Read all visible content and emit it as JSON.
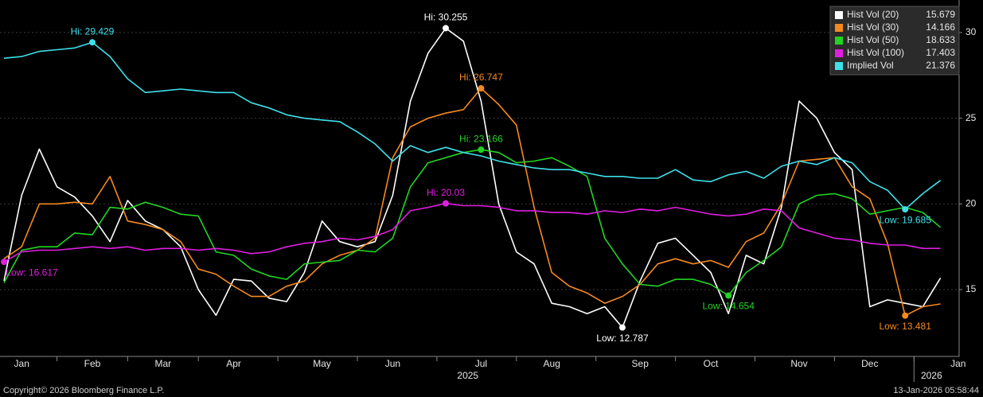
{
  "chart_data": {
    "type": "line",
    "categories": [
      null,
      "Jan",
      null,
      null,
      null,
      "Feb",
      null,
      null,
      null,
      "Mar",
      null,
      null,
      null,
      "Apr",
      null,
      null,
      null,
      null,
      "May",
      null,
      null,
      null,
      "Jun",
      null,
      null,
      null,
      null,
      "Jul",
      null,
      null,
      null,
      "Aug",
      null,
      null,
      null,
      null,
      "Sep",
      null,
      null,
      null,
      "Oct",
      null,
      null,
      null,
      null,
      "Nov",
      null,
      null,
      null,
      "Dec",
      null,
      null,
      null,
      null,
      "Jan"
    ],
    "years": [
      "2025",
      "2026"
    ],
    "ylim": [
      11.1,
      31.9
    ],
    "yticks": [
      15,
      20,
      25,
      30
    ],
    "grid": true,
    "legend": "top-right",
    "series": [
      {
        "name": "Hist Vol (20)",
        "color": "#ffffff",
        "high_label": "Hi: 30.255",
        "low_label": "Low: 12.787",
        "values": [
          15.5,
          20.5,
          23.2,
          21.0,
          20.4,
          19.3,
          17.8,
          20.2,
          19.0,
          18.5,
          17.5,
          15.0,
          13.5,
          15.6,
          15.5,
          14.5,
          14.3,
          16.0,
          19.0,
          17.8,
          17.5,
          17.8,
          20.5,
          26.0,
          28.8,
          30.255,
          29.5,
          26.0,
          20.0,
          17.2,
          16.5,
          14.2,
          14.0,
          13.6,
          14.0,
          12.787,
          15.5,
          17.7,
          18.0,
          17.0,
          16.0,
          13.6,
          17.0,
          16.5,
          19.8,
          26.0,
          25.0,
          23.0,
          22.0,
          14.0,
          14.4,
          14.2,
          14.0,
          15.679,
          null
        ]
      },
      {
        "name": "Hist Vol (30)",
        "color": "#f5891f",
        "high_label": "Hi: 26.747",
        "low_label": "Low: 13.481",
        "values": [
          16.8,
          17.5,
          20.0,
          20.0,
          20.1,
          20.0,
          21.6,
          19.0,
          18.8,
          18.5,
          17.8,
          16.2,
          15.9,
          15.2,
          14.6,
          14.6,
          15.2,
          15.5,
          16.5,
          17.0,
          17.3,
          18.0,
          22.7,
          24.5,
          25.0,
          25.3,
          25.5,
          26.747,
          25.8,
          24.6,
          19.8,
          16.0,
          15.2,
          14.8,
          14.2,
          14.6,
          15.3,
          16.5,
          16.8,
          16.5,
          16.7,
          16.3,
          17.8,
          18.3,
          20.0,
          22.5,
          22.6,
          22.7,
          21.0,
          20.3,
          17.7,
          13.481,
          14.0,
          14.166,
          null
        ]
      },
      {
        "name": "Hist Vol (50)",
        "color": "#22d422",
        "high_label": "Hi: 23.166",
        "low_label": "Low: 14.654",
        "values": [
          15.4,
          17.3,
          17.5,
          17.5,
          18.3,
          18.2,
          19.8,
          19.7,
          20.1,
          19.8,
          19.4,
          19.3,
          17.2,
          17.0,
          16.2,
          15.8,
          15.6,
          16.5,
          16.6,
          16.7,
          17.3,
          17.2,
          18.0,
          21.0,
          22.4,
          22.7,
          23.0,
          23.166,
          23.0,
          22.4,
          22.5,
          22.7,
          22.2,
          21.6,
          18.0,
          16.5,
          15.3,
          15.2,
          15.6,
          15.6,
          15.3,
          14.654,
          16.0,
          16.7,
          17.5,
          20.0,
          20.5,
          20.6,
          20.3,
          19.4,
          19.6,
          19.8,
          19.5,
          18.633,
          null
        ]
      },
      {
        "name": "Hist Vol (100)",
        "color": "#e01ee0",
        "high_label": "Hi: 20.03",
        "low_label": "Low: 16.617",
        "values": [
          16.617,
          17.2,
          17.3,
          17.3,
          17.4,
          17.5,
          17.4,
          17.5,
          17.3,
          17.4,
          17.4,
          17.3,
          17.4,
          17.3,
          17.1,
          17.2,
          17.5,
          17.7,
          17.8,
          18.0,
          17.9,
          18.1,
          18.5,
          19.6,
          19.8,
          20.03,
          19.9,
          19.9,
          19.8,
          19.6,
          19.6,
          19.5,
          19.5,
          19.4,
          19.6,
          19.5,
          19.7,
          19.6,
          19.8,
          19.6,
          19.4,
          19.3,
          19.4,
          19.7,
          19.6,
          18.6,
          18.3,
          18.0,
          17.9,
          17.7,
          17.6,
          17.6,
          17.4,
          17.403,
          null
        ]
      },
      {
        "name": "Implied Vol",
        "color": "#3ee0ea",
        "high_label": "Hi: 29.429",
        "low_label": "Low: 19.685",
        "values": [
          28.5,
          28.6,
          28.9,
          29.0,
          29.1,
          29.429,
          28.6,
          27.3,
          26.5,
          26.6,
          26.7,
          26.6,
          26.5,
          26.5,
          25.9,
          25.6,
          25.2,
          25.0,
          24.9,
          24.8,
          24.2,
          23.5,
          22.5,
          23.4,
          23.0,
          23.3,
          23.0,
          22.8,
          22.5,
          22.3,
          22.1,
          22.0,
          22.0,
          21.8,
          21.6,
          21.6,
          21.5,
          21.5,
          22.0,
          21.4,
          21.3,
          21.7,
          21.9,
          21.5,
          22.2,
          22.5,
          22.3,
          22.7,
          22.4,
          21.3,
          20.8,
          19.685,
          20.6,
          21.376,
          null
        ]
      }
    ]
  },
  "footer": {
    "copyright": "Copyright© 2026 Bloomberg Finance L.P.",
    "timestamp": "13-Jan-2026 05:58:44"
  }
}
